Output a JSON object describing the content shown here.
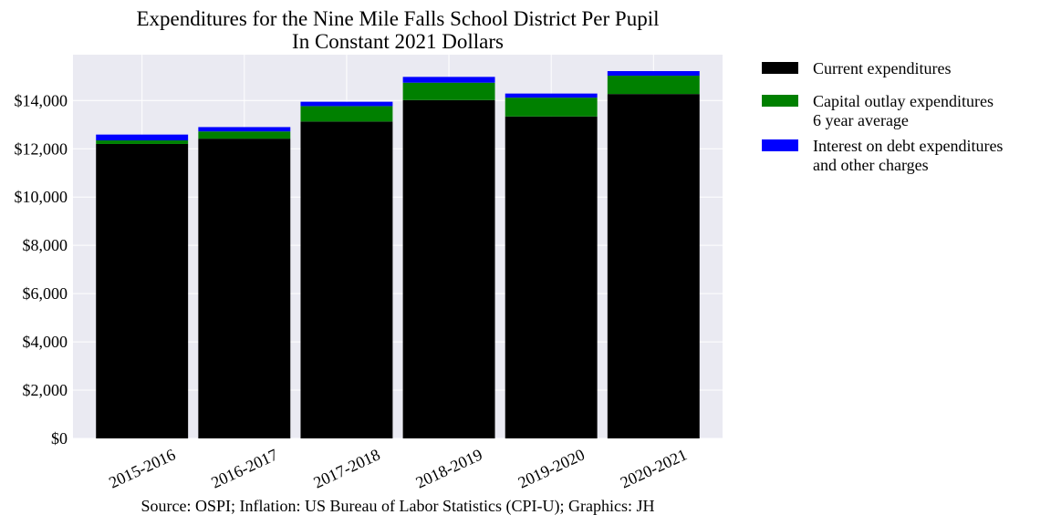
{
  "chart_data": {
    "type": "bar",
    "stacked": true,
    "title_lines": [
      "Expenditures for the Nine Mile Falls School District Per Pupil",
      "In Constant 2021 Dollars"
    ],
    "categories": [
      "2015-2016",
      "2016-2017",
      "2017-2018",
      "2018-2019",
      "2019-2020",
      "2020-2021"
    ],
    "series": [
      {
        "name": "Current expenditures",
        "color": "#000000",
        "values": [
          12200,
          12420,
          13130,
          14020,
          13340,
          14270
        ]
      },
      {
        "name": "Capital outlay expenditures\n6 year average",
        "color": "#008000",
        "values": [
          150,
          300,
          640,
          720,
          780,
          760
        ]
      },
      {
        "name": "Interest on debt expenditures\nand other charges",
        "color": "#0000ff",
        "values": [
          240,
          180,
          180,
          240,
          170,
          190
        ]
      }
    ],
    "ylim": [
      0,
      15900
    ],
    "yticks": [
      0,
      2000,
      4000,
      6000,
      8000,
      10000,
      12000,
      14000
    ],
    "ytick_labels": [
      "$0",
      "$2,000",
      "$4,000",
      "$6,000",
      "$8,000",
      "$10,000",
      "$12,000",
      "$14,000"
    ],
    "xlabel": "",
    "ylabel": "",
    "grid": true,
    "legend_position": "outside-right-top",
    "source": "Source: OSPI; Inflation: US Bureau of Labor Statistics (CPI-U); Graphics: JH",
    "background_color": "#eaeaf2"
  }
}
